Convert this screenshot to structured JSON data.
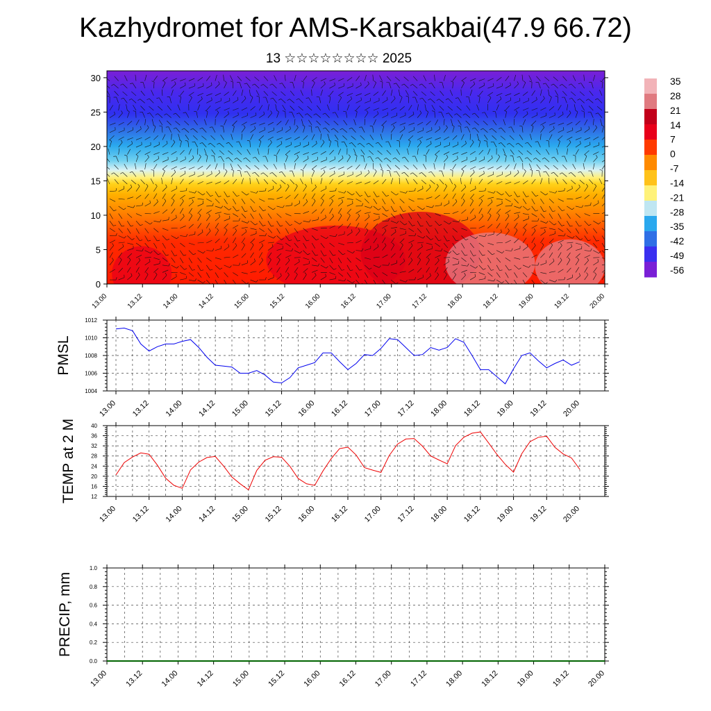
{
  "title": "Kazhydromet for AMS-Karsakbai(47.9 66.72)",
  "subtitle": "13 ☆☆☆☆☆☆☆☆ 2025",
  "chart_data": [
    {
      "type": "heatmap",
      "name": "temperature-wind cross-section",
      "x_tick_labels": [
        "13.00",
        "13.12",
        "14.00",
        "14.12",
        "15.00",
        "15.12",
        "16.00",
        "16.12",
        "17.00",
        "17.12",
        "18.00",
        "18.12",
        "19.00",
        "19.12",
        "20.00"
      ],
      "y_ticks": [
        0,
        5,
        10,
        15,
        20,
        25,
        30
      ],
      "ylim": [
        0,
        31
      ],
      "colorbar_labels": [
        "35",
        "28",
        "21",
        "14",
        "7",
        "0",
        "-7",
        "-14",
        "-21",
        "-28",
        "-35",
        "-42",
        "-49",
        "-56"
      ],
      "colorbar_range": [
        -60,
        38
      ],
      "colors": [
        "#7a1fd6",
        "#3a2ff0",
        "#2f6fe6",
        "#2aa8ee",
        "#bfe6f2",
        "#fff27a",
        "#ffc21a",
        "#ff8a00",
        "#ff3a00",
        "#e8001a",
        "#c2001a",
        "#e07a80",
        "#f2b3b8"
      ],
      "wind_barbs": true
    },
    {
      "type": "line",
      "ylabel": "PMSL",
      "x_tick_labels": [
        "13.00",
        "13.12",
        "14.00",
        "14.12",
        "15.00",
        "15.12",
        "16.00",
        "16.12",
        "17.00",
        "17.12",
        "18.00",
        "18.12",
        "19.00",
        "19.12",
        "20.00"
      ],
      "y_ticks": [
        1004,
        1006,
        1008,
        1010,
        1012
      ],
      "ylim": [
        1004,
        1012
      ],
      "grid": true,
      "line_color": "#0000ee",
      "x": [
        0,
        3,
        6,
        9,
        12,
        15,
        18,
        21,
        24,
        27,
        30,
        33,
        36,
        39,
        42,
        45,
        48,
        51,
        54,
        57,
        60,
        63,
        66,
        69,
        72,
        75,
        78,
        81,
        84,
        87,
        90,
        93,
        96,
        99,
        102,
        105,
        108,
        111,
        114,
        117,
        120,
        123,
        126,
        129,
        132,
        135,
        138,
        141,
        144,
        147,
        150,
        153,
        156,
        159,
        162,
        165,
        168
      ],
      "values": [
        1011.0,
        1011.1,
        1010.8,
        1009.3,
        1008.5,
        1009.0,
        1009.3,
        1009.3,
        1009.6,
        1009.8,
        1008.9,
        1007.8,
        1006.9,
        1006.8,
        1006.7,
        1006.0,
        1006.0,
        1006.3,
        1005.8,
        1005.0,
        1004.9,
        1005.5,
        1006.6,
        1006.9,
        1007.2,
        1008.3,
        1008.3,
        1007.3,
        1006.4,
        1007.1,
        1008.1,
        1008.0,
        1008.8,
        1009.9,
        1009.8,
        1008.9,
        1008.0,
        1008.1,
        1008.9,
        1008.6,
        1008.9,
        1009.9,
        1009.5,
        1008.0,
        1006.4,
        1006.4,
        1005.6,
        1004.8,
        1006.5,
        1008.0,
        1008.3,
        1007.4,
        1006.6,
        1007.1,
        1007.5,
        1006.9,
        1007.3
      ]
    },
    {
      "type": "line",
      "ylabel": "TEMP at 2 M",
      "x_tick_labels": [
        "13.00",
        "13.12",
        "14.00",
        "14.12",
        "15.00",
        "15.12",
        "16.00",
        "16.12",
        "17.00",
        "17.12",
        "18.00",
        "18.12",
        "19.00",
        "19.12",
        "20.00"
      ],
      "y_ticks": [
        12,
        16,
        20,
        24,
        28,
        32,
        36,
        40
      ],
      "ylim": [
        12,
        40
      ],
      "grid": true,
      "line_color": "#ee0000",
      "x": [
        0,
        3,
        6,
        9,
        12,
        15,
        18,
        21,
        24,
        27,
        30,
        33,
        36,
        39,
        42,
        45,
        48,
        51,
        54,
        57,
        60,
        63,
        66,
        69,
        72,
        75,
        78,
        81,
        84,
        87,
        90,
        93,
        96,
        99,
        102,
        105,
        108,
        111,
        114,
        117,
        120,
        123,
        126,
        129,
        132,
        135,
        138,
        141,
        144,
        147,
        150,
        153,
        156,
        159,
        162,
        165,
        168
      ],
      "values": [
        20.5,
        25.4,
        27.6,
        29.2,
        28.7,
        24.4,
        19.2,
        16.4,
        15.2,
        22.5,
        25.6,
        27.4,
        27.8,
        24.0,
        19.7,
        17.0,
        14.6,
        22.3,
        26.3,
        27.7,
        27.5,
        23.9,
        19.1,
        17.0,
        16.4,
        22.1,
        27.0,
        30.9,
        31.5,
        28.4,
        23.4,
        22.4,
        21.5,
        28.2,
        32.7,
        34.7,
        34.9,
        31.9,
        28.0,
        26.4,
        24.9,
        32.1,
        35.4,
        37.0,
        37.5,
        33.1,
        28.6,
        24.7,
        21.6,
        28.9,
        33.7,
        35.4,
        35.8,
        31.4,
        28.8,
        27.2,
        22.7
      ]
    },
    {
      "type": "line",
      "ylabel": "PRECIP, mm",
      "x_tick_labels": [
        "13.00",
        "13.12",
        "14.00",
        "14.12",
        "15.00",
        "15.12",
        "16.00",
        "16.12",
        "17.00",
        "17.12",
        "18.00",
        "18.12",
        "19.00",
        "19.12",
        "20.00"
      ],
      "y_ticks": [
        "0.0",
        "0.2",
        "0.4",
        "0.6",
        "0.8",
        "1.0"
      ],
      "ylim": [
        0,
        1
      ],
      "grid": true,
      "line_color": "#006400",
      "values": [
        0,
        0
      ]
    }
  ]
}
